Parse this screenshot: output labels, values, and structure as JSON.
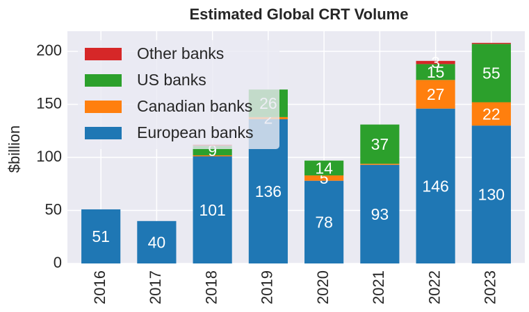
{
  "chart_data": {
    "type": "stacked_bar",
    "title": "Estimated Global CRT Volume",
    "y_label": "$billion",
    "categories": [
      "2016",
      "2017",
      "2018",
      "2019",
      "2020",
      "2021",
      "2022",
      "2023"
    ],
    "series": [
      {
        "name": "European banks",
        "color": "#1f77b4",
        "values": [
          51,
          40,
          101,
          136,
          78,
          93,
          146,
          130
        ]
      },
      {
        "name": "Canadian banks",
        "color": "#ff7f0e",
        "values": [
          0,
          0,
          1,
          2,
          5,
          1,
          27,
          22
        ]
      },
      {
        "name": "US banks",
        "color": "#2ca02c",
        "values": [
          0,
          0,
          9,
          26,
          14,
          37,
          15,
          55
        ]
      },
      {
        "name": "Other banks",
        "color": "#d62728",
        "values": [
          0,
          0,
          1,
          0,
          0,
          0,
          3,
          1
        ]
      }
    ],
    "ylim": [
      0,
      219
    ],
    "yticks": [
      0,
      50,
      100,
      150,
      200
    ],
    "grid": true,
    "legend": "upper left"
  }
}
